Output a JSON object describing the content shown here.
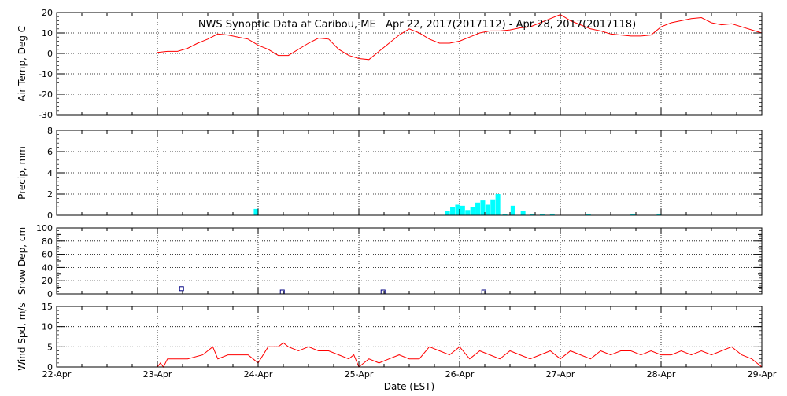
{
  "title": "NWS Synoptic Data at Caribou, ME   Apr 22, 2017(2017112) - Apr 28, 2017(2017118)",
  "xlabel": "Date (EST)",
  "x_ticks": [
    "22-Apr",
    "23-Apr",
    "24-Apr",
    "25-Apr",
    "26-Apr",
    "27-Apr",
    "28-Apr",
    "29-Apr"
  ],
  "colors": {
    "temp": "#ff0000",
    "precip": "#00ffff",
    "snow": "#000080",
    "wind": "#ff0000",
    "axis": "#000000",
    "grid": "#000000"
  },
  "chart_data": [
    {
      "type": "line",
      "ylabel": "Air Temp, Deg C",
      "ylim": [
        -30,
        20
      ],
      "yticks": [
        -30,
        -20,
        -10,
        0,
        10,
        20
      ],
      "xlim": [
        0,
        7
      ],
      "grid": true,
      "series": [
        {
          "x": [
            1.0,
            1.1,
            1.2,
            1.3,
            1.4,
            1.5,
            1.6,
            1.7,
            1.8,
            1.9,
            2.0,
            2.1,
            2.2,
            2.3,
            2.4,
            2.5,
            2.6,
            2.7,
            2.8,
            2.9,
            3.0,
            3.1,
            3.2,
            3.3,
            3.4,
            3.5,
            3.6,
            3.7,
            3.8,
            3.9,
            4.0,
            4.1,
            4.2,
            4.3,
            4.4,
            4.5,
            4.6,
            4.7,
            4.8,
            4.9,
            5.0,
            5.1,
            5.2,
            5.3,
            5.4,
            5.5,
            5.6,
            5.7,
            5.8,
            5.9,
            6.0,
            6.1,
            6.2,
            6.3,
            6.4,
            6.5,
            6.6,
            6.7,
            6.8,
            6.9,
            7.0
          ],
          "values": [
            0.5,
            1,
            1,
            2.5,
            5,
            7,
            9.5,
            9,
            8,
            7,
            4,
            2,
            -1,
            -1,
            2,
            5,
            7.5,
            7,
            2,
            -1,
            -2.5,
            -3,
            1,
            5,
            9,
            12,
            10,
            7,
            5,
            5,
            6,
            8,
            10,
            11,
            11,
            11.5,
            12.5,
            13,
            15,
            17,
            19,
            16,
            14,
            12,
            11,
            9.5,
            9,
            8.5,
            8.5,
            9,
            13,
            15,
            16,
            17,
            17.5,
            15,
            14,
            14.5,
            13,
            11.5,
            10
          ]
        }
      ]
    },
    {
      "type": "bar",
      "ylabel": "Precip, mm",
      "ylim": [
        0,
        8
      ],
      "yticks": [
        0,
        2,
        4,
        6,
        8
      ],
      "xlim": [
        0,
        7
      ],
      "grid": true,
      "series": [
        {
          "x": [
            1.98,
            3.88,
            3.93,
            3.98,
            4.03,
            4.08,
            4.13,
            4.18,
            4.23,
            4.28,
            4.33,
            4.38,
            4.45,
            4.53,
            4.63,
            4.72,
            4.82,
            4.92,
            5.28,
            5.72,
            5.98
          ],
          "values": [
            0.6,
            0.4,
            0.8,
            1.0,
            0.9,
            0.5,
            0.8,
            1.2,
            1.4,
            1.0,
            1.5,
            2.0,
            0.1,
            0.9,
            0.4,
            0.1,
            0.1,
            0.15,
            0.1,
            0.1,
            0.15
          ]
        }
      ]
    },
    {
      "type": "scatter",
      "ylabel": "Snow Dep, cm",
      "ylim": [
        0,
        100
      ],
      "yticks": [
        0,
        20,
        40,
        60,
        80,
        100
      ],
      "minor_yticks": [
        10,
        30,
        50,
        70,
        90
      ],
      "xlim": [
        0,
        7
      ],
      "grid": true,
      "series": [
        {
          "x": [
            1.24,
            2.24,
            3.24,
            4.24
          ],
          "values": [
            5,
            0,
            0,
            0
          ]
        }
      ]
    },
    {
      "type": "line",
      "ylabel": "Wind Spd, m/s",
      "ylim": [
        0,
        15
      ],
      "yticks": [
        0,
        5,
        10,
        15
      ],
      "xlim": [
        0,
        7
      ],
      "grid": true,
      "series": [
        {
          "x": [
            1.0,
            1.03,
            1.06,
            1.1,
            1.15,
            1.3,
            1.45,
            1.55,
            1.6,
            1.7,
            1.8,
            1.9,
            1.95,
            2.0,
            2.1,
            2.2,
            2.25,
            2.3,
            2.4,
            2.5,
            2.6,
            2.7,
            2.8,
            2.9,
            2.95,
            3.0,
            3.05,
            3.1,
            3.2,
            3.3,
            3.4,
            3.5,
            3.6,
            3.7,
            3.8,
            3.9,
            4.0,
            4.1,
            4.2,
            4.3,
            4.4,
            4.5,
            4.6,
            4.7,
            4.8,
            4.9,
            5.0,
            5.1,
            5.2,
            5.3,
            5.4,
            5.5,
            5.6,
            5.7,
            5.8,
            5.9,
            6.0,
            6.1,
            6.2,
            6.3,
            6.4,
            6.5,
            6.6,
            6.7,
            6.8,
            6.9,
            7.0
          ],
          "values": [
            0,
            1,
            0,
            2,
            2,
            2,
            3,
            5,
            2,
            3,
            3,
            3,
            2,
            1,
            5,
            5,
            6,
            5,
            4,
            5,
            4,
            4,
            3,
            2,
            3,
            0,
            1,
            2,
            1,
            2,
            3,
            2,
            2,
            5,
            4,
            3,
            5,
            2,
            4,
            3,
            2,
            4,
            3,
            2,
            3,
            4,
            2,
            4,
            3,
            2,
            4,
            3,
            4,
            4,
            3,
            4,
            3,
            3,
            4,
            3,
            4,
            3,
            4,
            5,
            3,
            2,
            0
          ]
        }
      ]
    }
  ]
}
